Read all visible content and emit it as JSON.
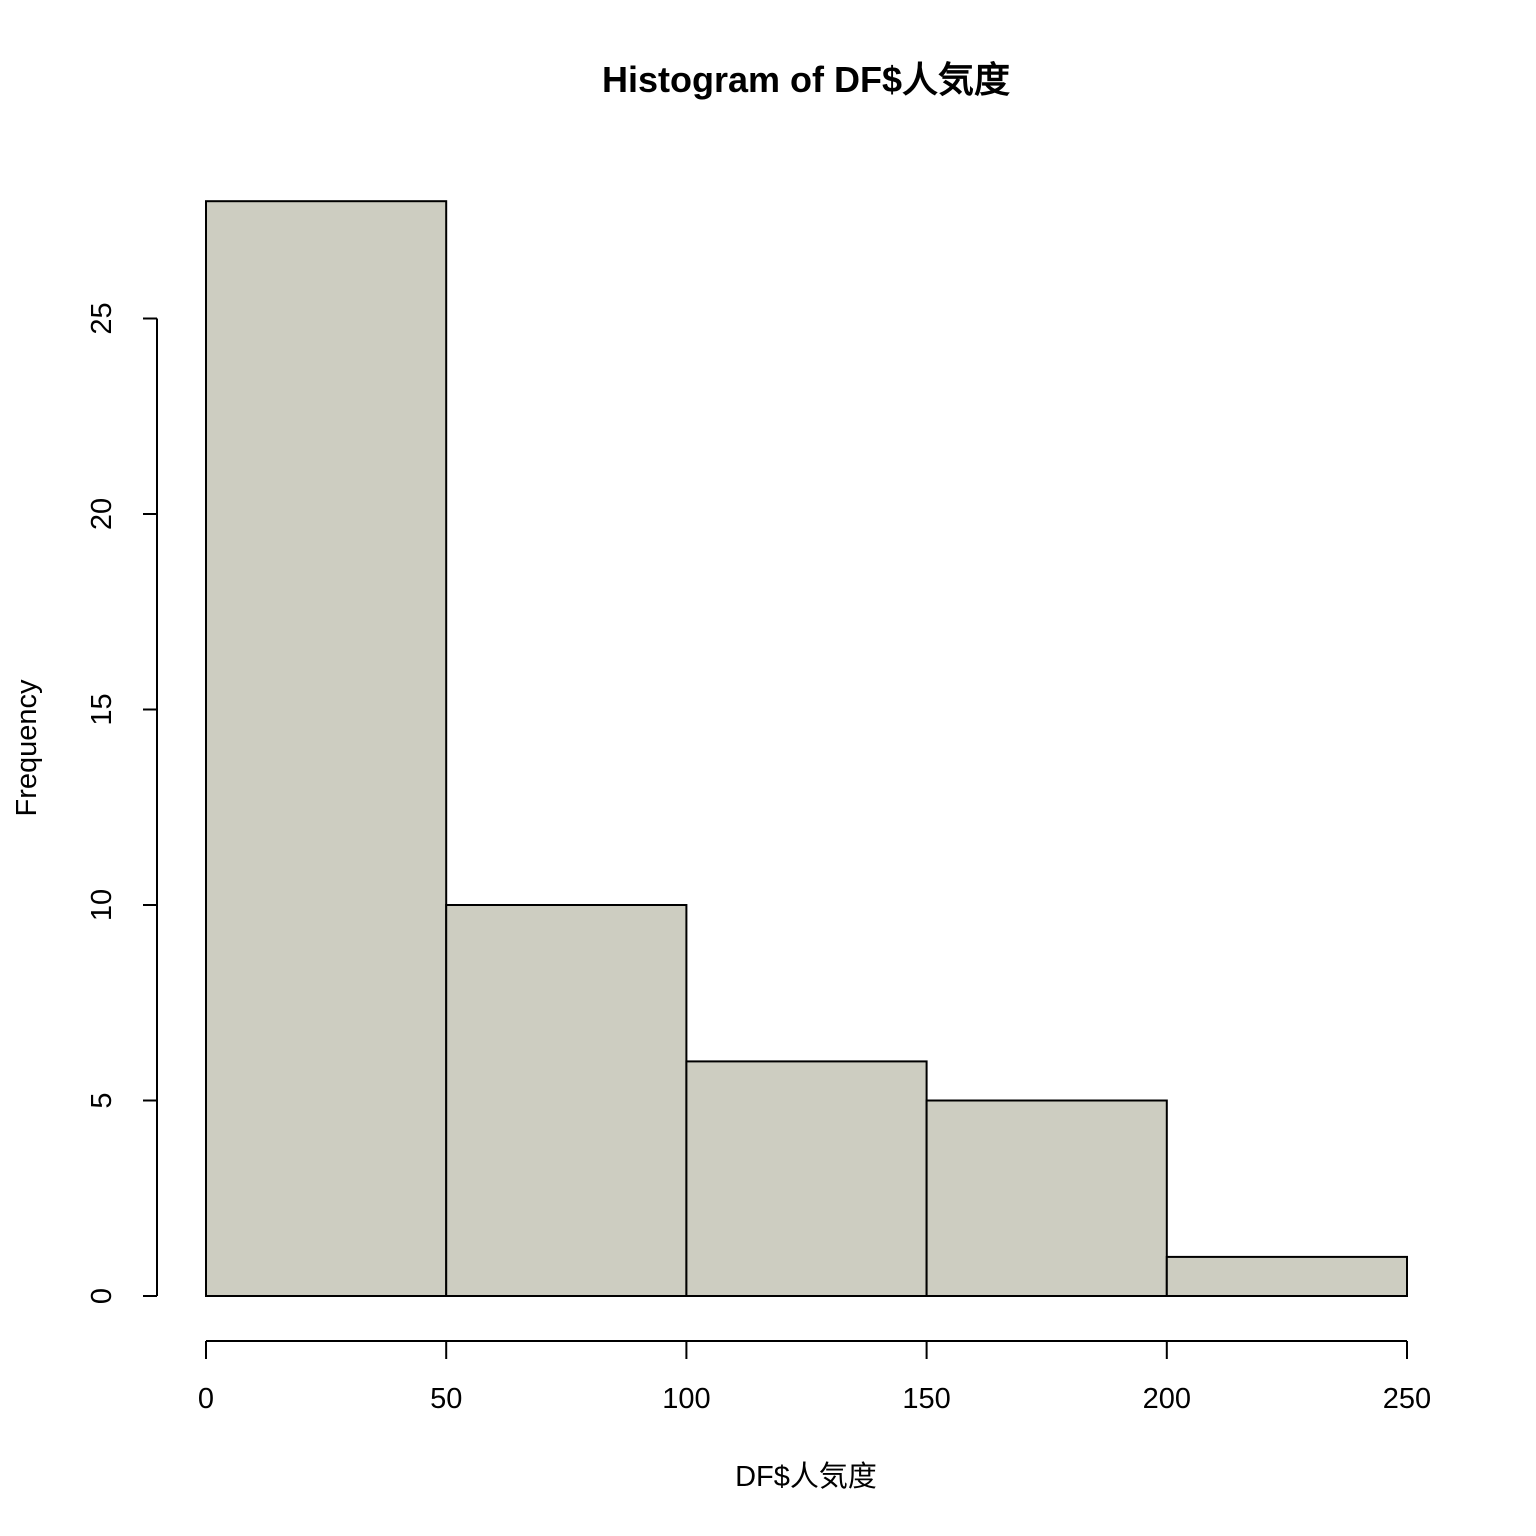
{
  "chart_data": {
    "type": "bar",
    "subtype": "histogram",
    "title": "Histogram of DF$人気度",
    "xlabel": "DF$人気度",
    "ylabel": "Frequency",
    "bins": [
      {
        "from": 0,
        "to": 50,
        "count": 28
      },
      {
        "from": 50,
        "to": 100,
        "count": 10
      },
      {
        "from": 100,
        "to": 150,
        "count": 6
      },
      {
        "from": 150,
        "to": 200,
        "count": 5
      },
      {
        "from": 200,
        "to": 250,
        "count": 1
      }
    ],
    "x_ticks": [
      0,
      50,
      100,
      150,
      200,
      250
    ],
    "y_ticks": [
      0,
      5,
      10,
      15,
      20,
      25
    ],
    "xlim": [
      0,
      250
    ],
    "ylim": [
      0,
      28
    ],
    "bar_color": "#cdcdc1",
    "grid": false
  }
}
